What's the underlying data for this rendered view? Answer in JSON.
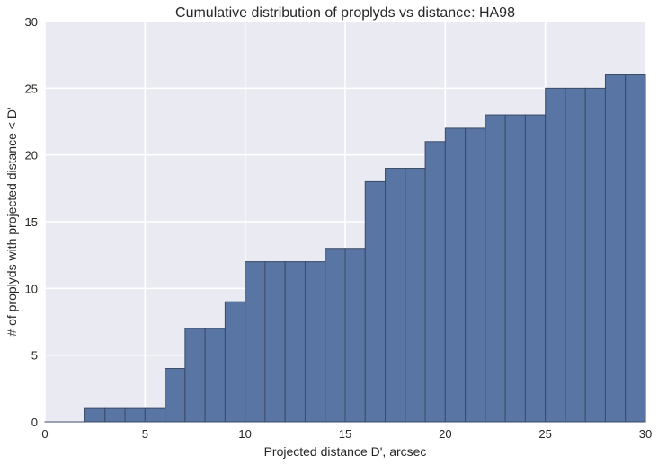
{
  "chart_data": {
    "type": "bar",
    "title": "Cumulative distribution of proplyds vs distance: HA98",
    "xlabel": "Projected distance D', arcsec",
    "ylabel": "# of proplyds with projected distance < D'",
    "xlim": [
      0,
      30
    ],
    "ylim": [
      0,
      30
    ],
    "xticks": [
      0,
      5,
      10,
      15,
      20,
      25,
      30
    ],
    "yticks": [
      0,
      5,
      10,
      15,
      20,
      25,
      30
    ],
    "grid": true,
    "legend": "none",
    "bin_width": 1,
    "bin_starts": [
      0,
      1,
      2,
      3,
      4,
      5,
      6,
      7,
      8,
      9,
      10,
      11,
      12,
      13,
      14,
      15,
      16,
      17,
      18,
      19,
      20,
      21,
      22,
      23,
      24,
      25,
      26,
      27,
      28,
      29
    ],
    "values": [
      0,
      0,
      1,
      1,
      1,
      1,
      4,
      7,
      7,
      9,
      12,
      12,
      12,
      12,
      13,
      13,
      18,
      19,
      19,
      21,
      22,
      22,
      23,
      23,
      23,
      25,
      25,
      25,
      26,
      26
    ],
    "colors": {
      "bar": "#5975a4",
      "bar_edge": "#3a4a64",
      "background": "#eaeaf2",
      "grid": "#ffffff"
    }
  }
}
